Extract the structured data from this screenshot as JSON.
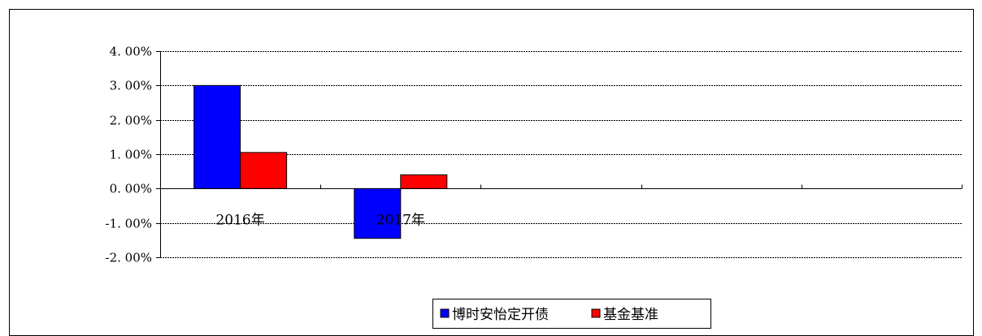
{
  "chart_data": {
    "type": "bar",
    "title": "",
    "xlabel": "",
    "ylabel": "",
    "categories": [
      "2016年",
      "2017年",
      "",
      "",
      ""
    ],
    "series": [
      {
        "name": "博时安怡定开债",
        "values": [
          3.0,
          -1.45,
          null,
          null,
          null
        ],
        "color": "#0000ff"
      },
      {
        "name": "基金基准",
        "values": [
          1.05,
          0.4,
          null,
          null,
          null
        ],
        "color": "#ff0000"
      }
    ],
    "ylim": [
      -2.0,
      4.0
    ],
    "yticks": [
      4.0,
      3.0,
      2.0,
      1.0,
      0.0,
      -1.0,
      -2.0
    ],
    "ytick_labels": [
      "4. 00%",
      "3. 00%",
      "2. 00%",
      "1. 00%",
      "0. 00%",
      "-1. 00%",
      "-2. 00%"
    ],
    "grid": true,
    "legend_position": "bottom"
  }
}
